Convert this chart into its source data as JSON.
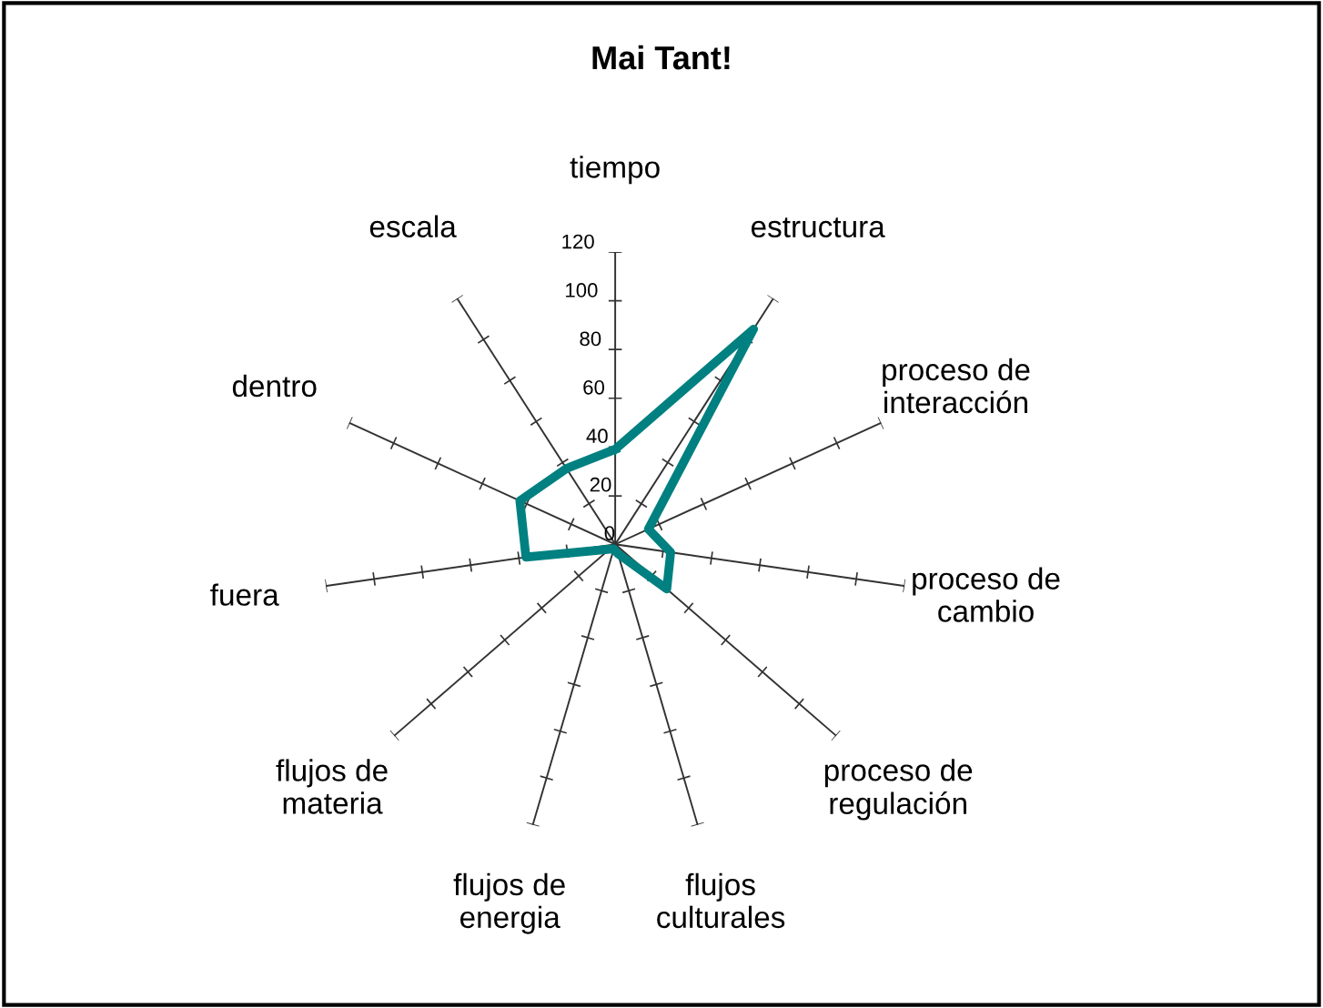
{
  "chart_data": {
    "type": "radar",
    "title": "Mai Tant!",
    "categories": [
      "tiempo",
      "estructura",
      "proceso de\ninteracción",
      "proceso de\ncambio",
      "proceso de\nregulación",
      "flujos\nculturales",
      "flujos de\nenergia",
      "flujos de\nmateria",
      "fuera",
      "dentro",
      "escala"
    ],
    "series": [
      {
        "color": "#008080",
        "values": [
          39,
          105,
          15,
          23,
          28,
          4,
          2,
          3,
          37,
          43,
          37
        ]
      }
    ],
    "ylim": [
      0,
      120
    ],
    "yticks": [
      0,
      20,
      40,
      60,
      80,
      100,
      120
    ],
    "grid": "x"
  }
}
